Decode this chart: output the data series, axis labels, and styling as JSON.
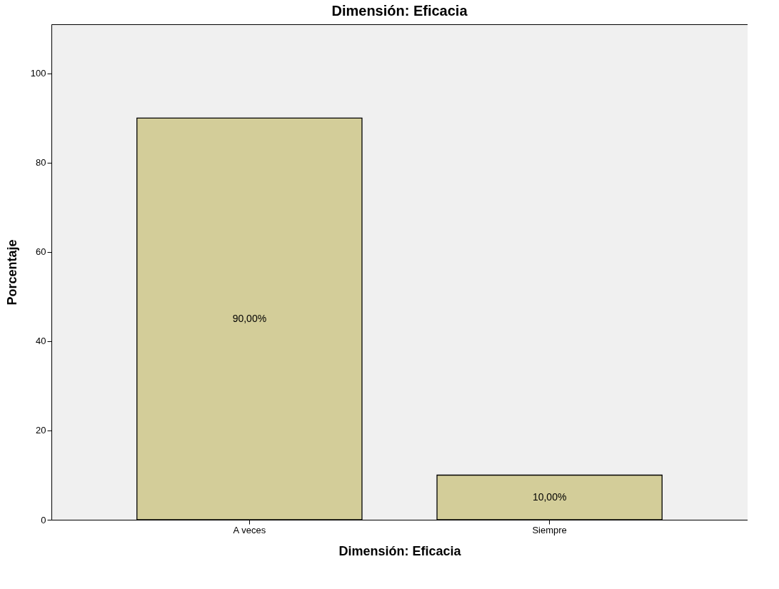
{
  "chart_data": {
    "type": "bar",
    "title": "Dimensión: Eficacia",
    "xlabel": "Dimensión: Eficacia",
    "ylabel": "Porcentaje",
    "categories": [
      "A veces",
      "Siempre"
    ],
    "values": [
      90,
      10
    ],
    "value_labels": [
      "90,00%",
      "10,00%"
    ],
    "color": "#d3cd99",
    "ylim": [
      0,
      111
    ],
    "yticks": [
      0,
      20,
      40,
      60,
      80,
      100
    ],
    "grid": false
  }
}
